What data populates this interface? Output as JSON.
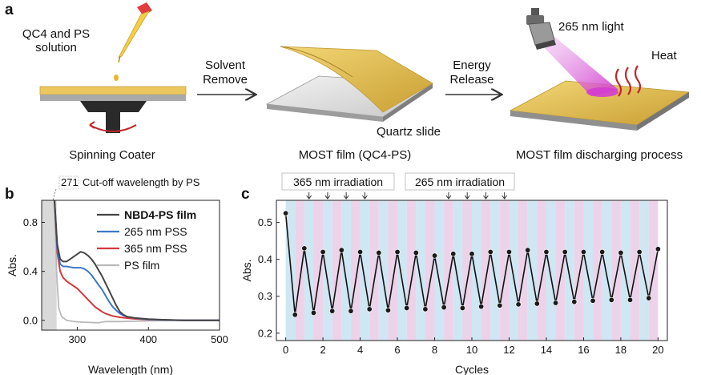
{
  "panel_a": {
    "label": "a",
    "solution_label_1": "QC4 and PS",
    "solution_label_2": "solution",
    "arrow1_top": "Solvent",
    "arrow1_bottom": "Remove",
    "arrow2_top": "Energy",
    "arrow2_bottom": "Release",
    "light_label": "265 nm light",
    "heat_label": "Heat",
    "quartz_label": "Quartz slide",
    "caption_left": "Spinning Coater",
    "caption_mid": "MOST film (QC4-PS)",
    "caption_right": "MOST film discharging process",
    "colors": {
      "film": "#e7c55a",
      "film_dark": "#c9a33a",
      "substrate": "#a8a8a8",
      "chuck": "#2a2a2a",
      "light": "#d85ad0",
      "heat": "#c0262a"
    }
  },
  "panel_b": {
    "label": "b",
    "cutoff_value": "271",
    "cutoff_text": "Cut-off wavelength by PS",
    "legend": [
      "NBD4-PS film",
      "265 nm PSS",
      "365 nm PSS",
      "PS film"
    ],
    "colors": {
      "NBD4-PS film": "#454545",
      "265 nm PSS": "#3b78c8",
      "365 nm PSS": "#d3393e",
      "PS film": "#b9b9b9"
    },
    "chart_data": {
      "type": "line",
      "xlabel": "Wavelength (nm)",
      "ylabel": "Abs.",
      "xlim": [
        250,
        500
      ],
      "ylim": [
        -0.08,
        0.98
      ],
      "xticks": [
        300,
        400,
        500
      ],
      "yticks": [
        0.0,
        0.4,
        0.8
      ],
      "shaded_below_x": 271,
      "series": [
        {
          "name": "NBD4-PS film",
          "x": [
            268,
            272,
            276,
            280,
            285,
            290,
            295,
            300,
            305,
            310,
            315,
            320,
            325,
            330,
            335,
            340,
            345,
            350,
            355,
            360,
            365,
            370,
            380,
            390,
            400,
            420,
            450,
            500
          ],
          "y": [
            0.98,
            0.62,
            0.5,
            0.48,
            0.48,
            0.5,
            0.52,
            0.54,
            0.56,
            0.55,
            0.53,
            0.5,
            0.46,
            0.41,
            0.36,
            0.3,
            0.24,
            0.18,
            0.12,
            0.07,
            0.045,
            0.03,
            0.02,
            0.015,
            0.01,
            0.005,
            0.0,
            0.0
          ]
        },
        {
          "name": "265 nm PSS",
          "x": [
            268,
            272,
            276,
            280,
            285,
            290,
            295,
            300,
            305,
            310,
            315,
            320,
            325,
            330,
            335,
            340,
            345,
            350,
            355,
            360,
            365,
            370,
            380,
            390,
            400,
            420,
            450,
            500
          ],
          "y": [
            0.98,
            0.58,
            0.46,
            0.44,
            0.44,
            0.435,
            0.43,
            0.43,
            0.43,
            0.42,
            0.4,
            0.37,
            0.33,
            0.29,
            0.25,
            0.2,
            0.15,
            0.11,
            0.08,
            0.055,
            0.04,
            0.03,
            0.02,
            0.012,
            0.008,
            0.004,
            0.0,
            0.0
          ]
        },
        {
          "name": "365 nm PSS",
          "x": [
            268,
            272,
            276,
            280,
            285,
            290,
            295,
            300,
            305,
            310,
            315,
            320,
            325,
            330,
            335,
            340,
            345,
            350,
            360,
            370,
            380,
            400,
            450,
            500
          ],
          "y": [
            0.98,
            0.55,
            0.4,
            0.35,
            0.32,
            0.3,
            0.28,
            0.26,
            0.23,
            0.2,
            0.17,
            0.14,
            0.11,
            0.09,
            0.07,
            0.055,
            0.045,
            0.035,
            0.025,
            0.018,
            0.012,
            0.006,
            0.0,
            0.0
          ]
        },
        {
          "name": "PS film",
          "x": [
            268,
            271,
            274,
            278,
            285,
            295,
            310,
            330,
            340,
            360,
            400,
            450,
            500
          ],
          "y": [
            0.98,
            0.4,
            0.1,
            0.03,
            0.0,
            -0.01,
            -0.015,
            -0.02,
            -0.01,
            -0.01,
            -0.005,
            0.0,
            0.0
          ]
        }
      ]
    }
  },
  "panel_c": {
    "label": "c",
    "irr365_label": "365 nm irradiation",
    "irr265_label": "265 nm irradiation",
    "colors": {
      "line": "#111111",
      "marker": "#1a1a1a",
      "band_blue": "#cfe6f3",
      "band_pink": "#ecd3ea"
    },
    "chart_data": {
      "type": "line",
      "xlabel": "Cycles",
      "ylabel": "Abs.",
      "xlim": [
        -0.5,
        20.5
      ],
      "ylim": [
        0.18,
        0.56
      ],
      "xticks": [
        0,
        2,
        4,
        6,
        8,
        10,
        12,
        14,
        16,
        18,
        20
      ],
      "yticks": [
        0.2,
        0.3,
        0.4,
        0.5
      ],
      "x": [
        0,
        0.5,
        1,
        1.5,
        2,
        2.5,
        3,
        3.5,
        4,
        4.5,
        5,
        5.5,
        6,
        6.5,
        7,
        7.5,
        8,
        8.5,
        9,
        9.5,
        10,
        10.5,
        11,
        11.5,
        12,
        12.5,
        13,
        13.5,
        14,
        14.5,
        15,
        15.5,
        16,
        16.5,
        17,
        17.5,
        18,
        18.5,
        19,
        19.5,
        20
      ],
      "y": [
        0.525,
        0.25,
        0.43,
        0.255,
        0.42,
        0.26,
        0.425,
        0.26,
        0.42,
        0.265,
        0.418,
        0.262,
        0.42,
        0.268,
        0.418,
        0.265,
        0.41,
        0.27,
        0.415,
        0.268,
        0.415,
        0.272,
        0.42,
        0.275,
        0.42,
        0.278,
        0.425,
        0.28,
        0.42,
        0.282,
        0.42,
        0.285,
        0.42,
        0.288,
        0.42,
        0.29,
        0.418,
        0.29,
        0.42,
        0.295,
        0.428
      ]
    }
  }
}
